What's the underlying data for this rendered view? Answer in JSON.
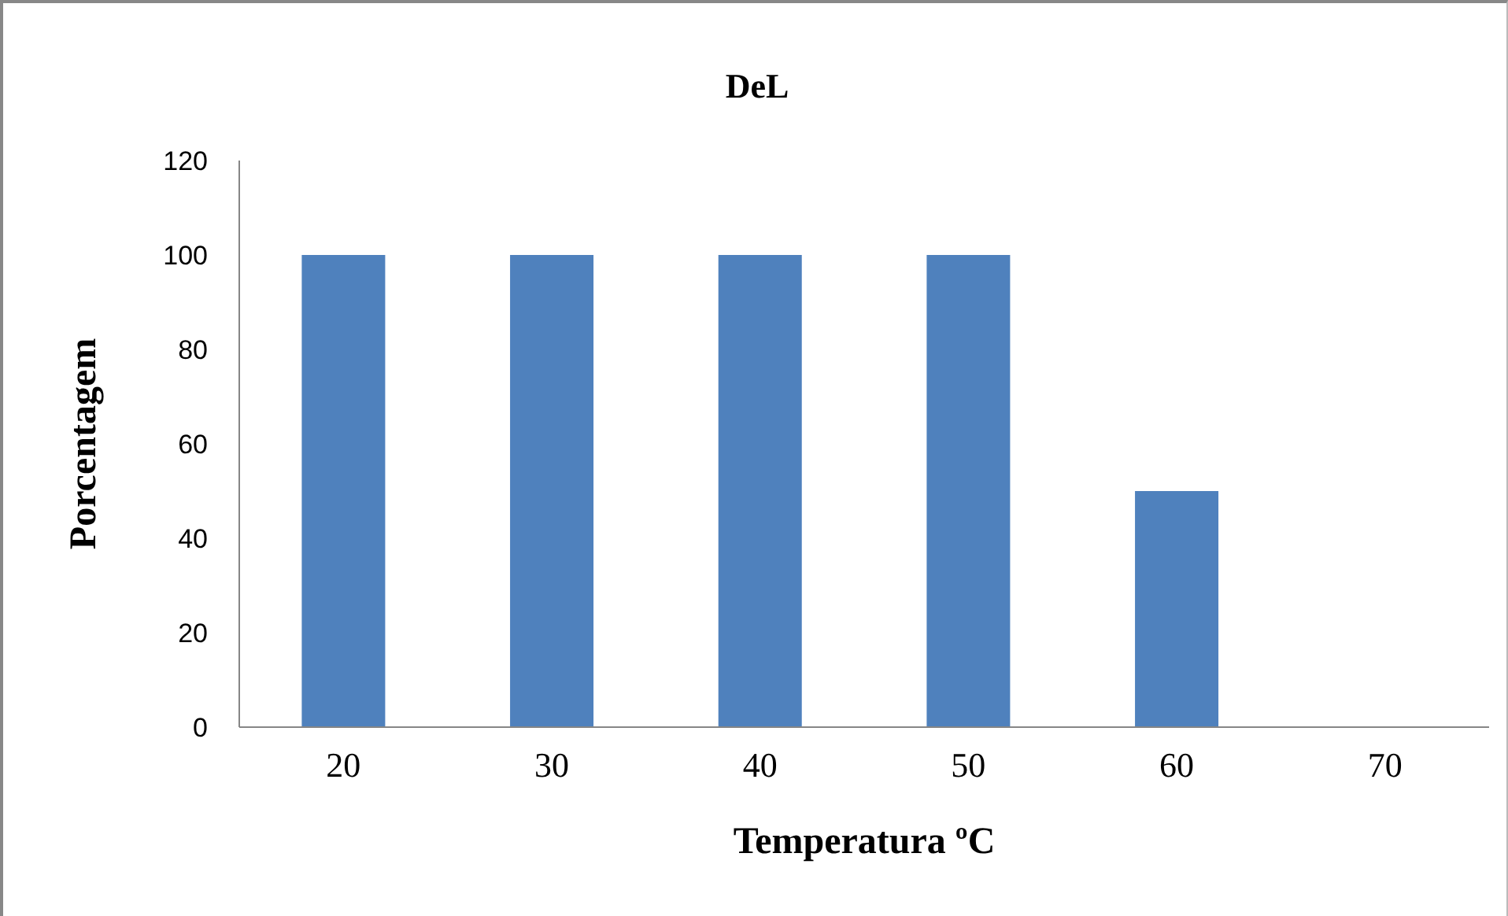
{
  "chart_data": {
    "type": "bar",
    "title": "DeL",
    "xlabel": "Temperatura  ºC",
    "ylabel": "Porcentagem",
    "categories": [
      "20",
      "30",
      "40",
      "50",
      "60",
      "70"
    ],
    "values": [
      100,
      100,
      100,
      100,
      50,
      0
    ],
    "color": "#4f81bd",
    "ylim": [
      0,
      120
    ],
    "yticks": [
      0,
      20,
      40,
      60,
      80,
      100,
      120
    ],
    "grid": false,
    "legend": false
  }
}
